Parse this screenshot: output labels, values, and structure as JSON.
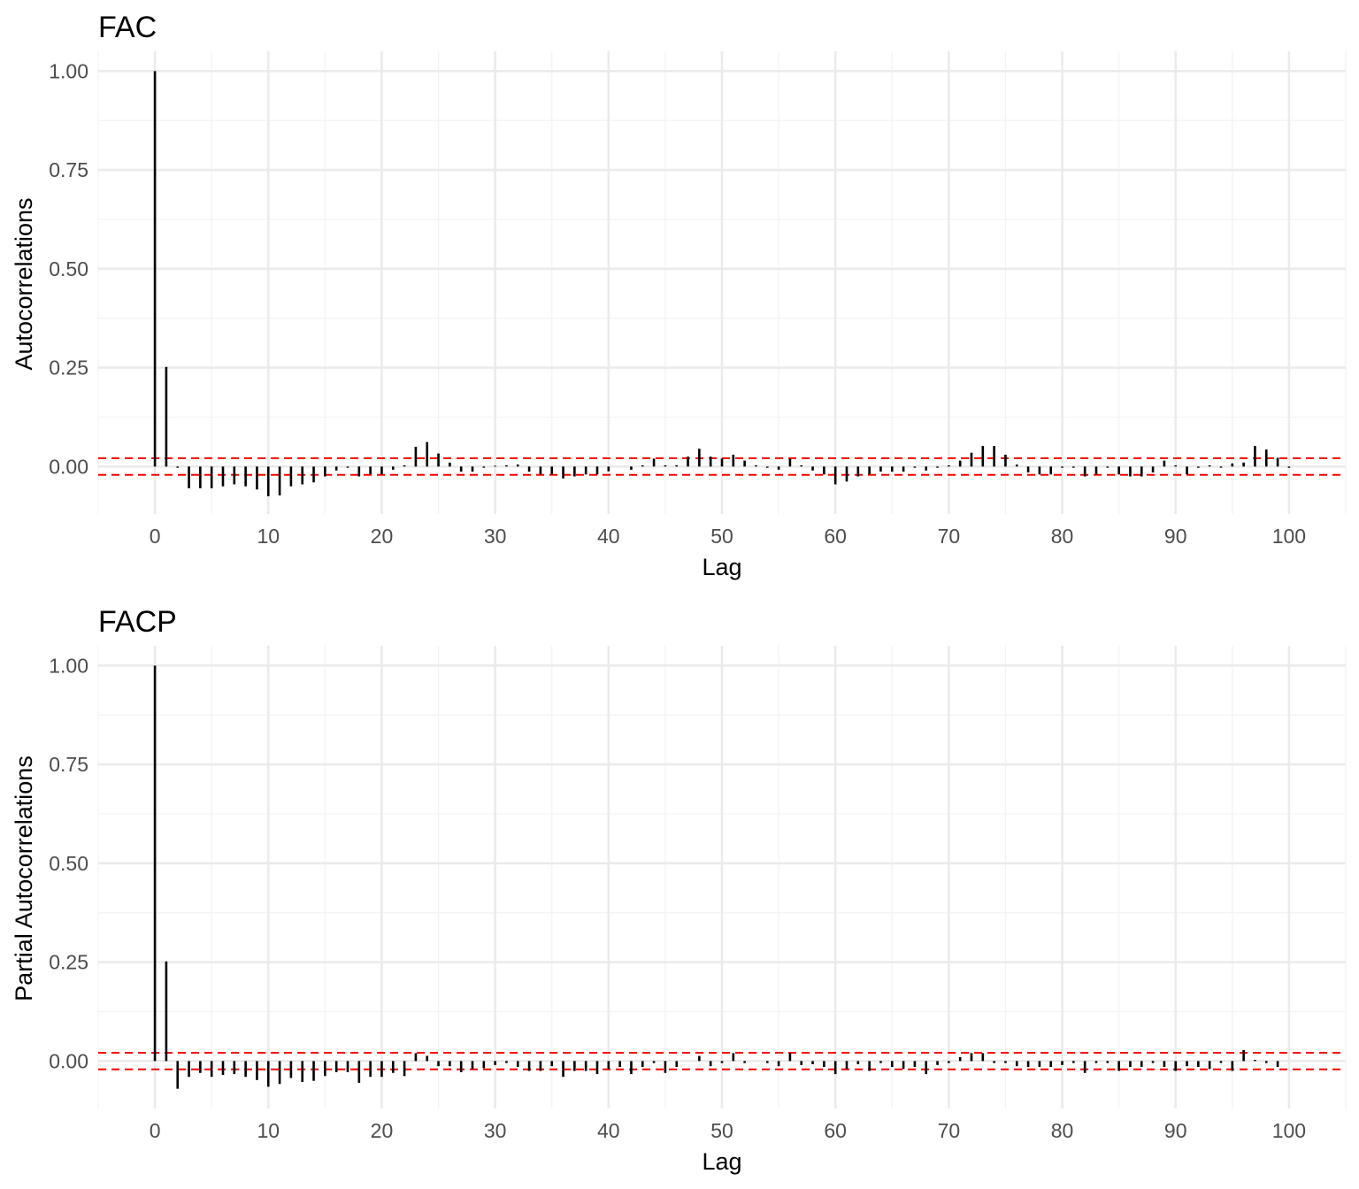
{
  "chart_data": [
    {
      "type": "bar",
      "title": "FAC",
      "xlabel": "Lag",
      "ylabel": "Autocorrelations",
      "xlim": [
        -5,
        105
      ],
      "ylim": [
        -0.12,
        1.05
      ],
      "xticks": [
        0,
        10,
        20,
        30,
        40,
        50,
        60,
        70,
        80,
        90,
        100
      ],
      "yticks": [
        0.0,
        0.25,
        0.5,
        0.75,
        1.0
      ],
      "ytick_labels": [
        "0.00",
        "0.25",
        "0.50",
        "0.75",
        "1.00"
      ],
      "grid": true,
      "confidence_band": 0.021,
      "confidence_color": "#ff0000",
      "bar_color": "#000000",
      "lags": [
        0,
        1,
        2,
        3,
        4,
        5,
        6,
        7,
        8,
        9,
        10,
        11,
        12,
        13,
        14,
        15,
        16,
        17,
        18,
        19,
        20,
        21,
        22,
        23,
        24,
        25,
        26,
        27,
        28,
        29,
        30,
        31,
        32,
        33,
        34,
        35,
        36,
        37,
        38,
        39,
        40,
        41,
        42,
        43,
        44,
        45,
        46,
        47,
        48,
        49,
        50,
        51,
        52,
        53,
        54,
        55,
        56,
        57,
        58,
        59,
        60,
        61,
        62,
        63,
        64,
        65,
        66,
        67,
        68,
        69,
        70,
        71,
        72,
        73,
        74,
        75,
        76,
        77,
        78,
        79,
        80,
        81,
        82,
        83,
        84,
        85,
        86,
        87,
        88,
        89,
        90,
        91,
        92,
        93,
        94,
        95,
        96,
        97,
        98,
        99,
        100
      ],
      "values": [
        1.0,
        0.252,
        -0.003,
        -0.055,
        -0.055,
        -0.055,
        -0.05,
        -0.045,
        -0.05,
        -0.058,
        -0.075,
        -0.073,
        -0.05,
        -0.045,
        -0.04,
        -0.025,
        -0.01,
        -0.003,
        -0.025,
        -0.02,
        -0.02,
        -0.008,
        0.003,
        0.05,
        0.062,
        0.033,
        0.01,
        -0.013,
        -0.013,
        -0.003,
        0.002,
        0.003,
        0.005,
        -0.013,
        -0.02,
        -0.02,
        -0.03,
        -0.025,
        -0.02,
        -0.02,
        -0.012,
        0.0,
        -0.008,
        0.003,
        0.02,
        0.003,
        0.003,
        0.025,
        0.045,
        0.025,
        0.02,
        0.03,
        0.015,
        0.003,
        -0.003,
        -0.008,
        0.02,
        0.003,
        -0.01,
        -0.02,
        -0.045,
        -0.038,
        -0.025,
        -0.02,
        -0.013,
        -0.013,
        -0.013,
        -0.003,
        -0.01,
        -0.003,
        0.003,
        0.015,
        0.035,
        0.052,
        0.052,
        0.03,
        0.005,
        -0.015,
        -0.02,
        -0.02,
        -0.003,
        -0.003,
        -0.025,
        -0.02,
        -0.003,
        -0.02,
        -0.025,
        -0.025,
        -0.015,
        0.015,
        0.003,
        -0.02,
        -0.003,
        0.003,
        -0.003,
        0.008,
        0.01,
        0.052,
        0.043,
        0.022,
        -0.003,
        0.0
      ]
    },
    {
      "type": "bar",
      "title": "FACP",
      "xlabel": "Lag",
      "ylabel": "Partial Autocorrelations",
      "xlim": [
        -5,
        105
      ],
      "ylim": [
        -0.12,
        1.05
      ],
      "xticks": [
        0,
        10,
        20,
        30,
        40,
        50,
        60,
        70,
        80,
        90,
        100
      ],
      "yticks": [
        0.0,
        0.25,
        0.5,
        0.75,
        1.0
      ],
      "ytick_labels": [
        "0.00",
        "0.25",
        "0.50",
        "0.75",
        "1.00"
      ],
      "grid": true,
      "confidence_band": 0.021,
      "confidence_color": "#ff0000",
      "bar_color": "#000000",
      "lags": [
        0,
        1,
        2,
        3,
        4,
        5,
        6,
        7,
        8,
        9,
        10,
        11,
        12,
        13,
        14,
        15,
        16,
        17,
        18,
        19,
        20,
        21,
        22,
        23,
        24,
        25,
        26,
        27,
        28,
        29,
        30,
        31,
        32,
        33,
        34,
        35,
        36,
        37,
        38,
        39,
        40,
        41,
        42,
        43,
        44,
        45,
        46,
        47,
        48,
        49,
        50,
        51,
        52,
        53,
        54,
        55,
        56,
        57,
        58,
        59,
        60,
        61,
        62,
        63,
        64,
        65,
        66,
        67,
        68,
        69,
        70,
        71,
        72,
        73,
        74,
        75,
        76,
        77,
        78,
        79,
        80,
        81,
        82,
        83,
        84,
        85,
        86,
        87,
        88,
        89,
        90,
        91,
        92,
        93,
        94,
        95,
        96,
        97,
        98,
        99,
        100
      ],
      "values": [
        1.0,
        0.252,
        -0.07,
        -0.04,
        -0.03,
        -0.04,
        -0.035,
        -0.033,
        -0.04,
        -0.048,
        -0.065,
        -0.058,
        -0.043,
        -0.053,
        -0.05,
        -0.038,
        -0.028,
        -0.028,
        -0.055,
        -0.04,
        -0.04,
        -0.03,
        -0.038,
        0.02,
        0.013,
        -0.013,
        -0.013,
        -0.028,
        -0.02,
        -0.018,
        -0.01,
        -0.005,
        -0.015,
        -0.025,
        -0.025,
        -0.013,
        -0.04,
        -0.025,
        -0.025,
        -0.033,
        -0.02,
        -0.015,
        -0.033,
        -0.015,
        -0.005,
        -0.03,
        -0.015,
        0.0,
        0.013,
        -0.013,
        -0.005,
        0.02,
        -0.005,
        0.0,
        -0.005,
        -0.013,
        0.02,
        -0.01,
        -0.008,
        -0.015,
        -0.033,
        -0.02,
        -0.008,
        -0.025,
        -0.005,
        -0.015,
        -0.02,
        -0.015,
        -0.033,
        -0.01,
        -0.005,
        0.01,
        0.02,
        0.02,
        -0.005,
        -0.005,
        -0.013,
        -0.015,
        -0.015,
        -0.015,
        -0.01,
        -0.005,
        -0.03,
        -0.005,
        -0.005,
        -0.025,
        -0.015,
        -0.015,
        -0.005,
        -0.015,
        -0.025,
        -0.013,
        -0.015,
        -0.02,
        -0.005,
        -0.025,
        0.028,
        0.003,
        -0.005,
        -0.015,
        0.0
      ]
    }
  ]
}
